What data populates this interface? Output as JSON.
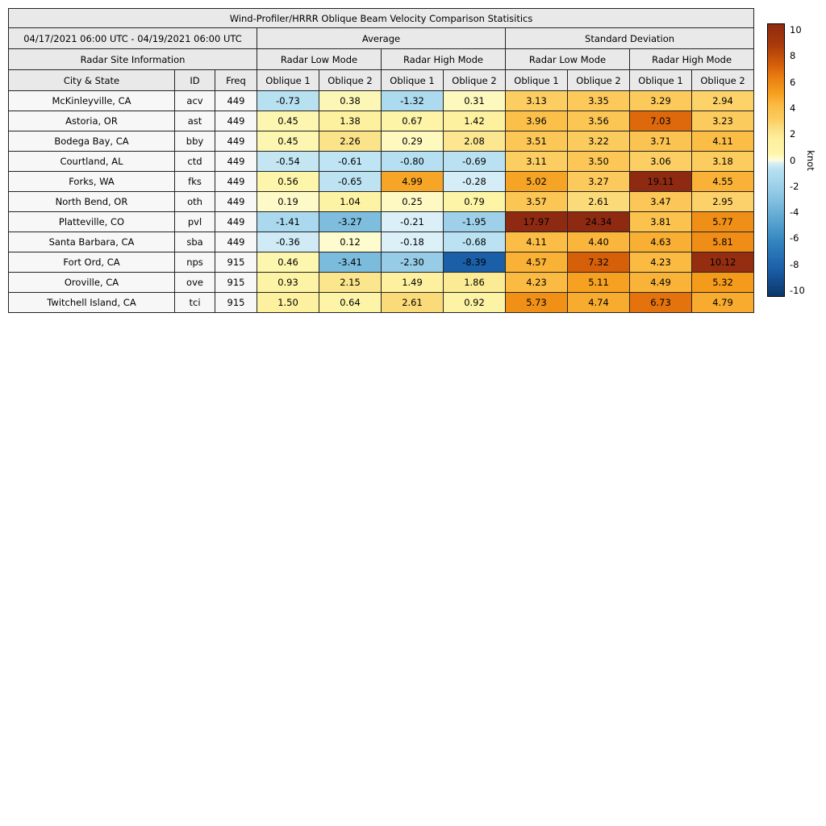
{
  "chart_data": {
    "type": "heatmap-table",
    "title": "Wind-Profiler/HRRR Oblique Beam Velocity Comparison Statisitics",
    "date_range": "04/17/2021 06:00 UTC - 04/19/2021 06:00 UTC",
    "groups": [
      "Average",
      "Standard Deviation"
    ],
    "site_info_label": "Radar Site Information",
    "mode_headers": [
      "Radar Low Mode",
      "Radar High Mode",
      "Radar Low Mode",
      "Radar High Mode"
    ],
    "column_headers": [
      "City & State",
      "ID",
      "Freq",
      "Oblique 1",
      "Oblique 2",
      "Oblique 1",
      "Oblique 2",
      "Oblique 1",
      "Oblique 2",
      "Oblique 1",
      "Oblique 2"
    ],
    "rows": [
      {
        "city": "McKinleyville, CA",
        "id": "acv",
        "freq": "449",
        "values": [
          -0.73,
          0.38,
          -1.32,
          0.31,
          3.13,
          3.35,
          3.29,
          2.94
        ]
      },
      {
        "city": "Astoria, OR",
        "id": "ast",
        "freq": "449",
        "values": [
          0.45,
          1.38,
          0.67,
          1.42,
          3.96,
          3.56,
          7.03,
          3.23
        ]
      },
      {
        "city": "Bodega Bay, CA",
        "id": "bby",
        "freq": "449",
        "values": [
          0.45,
          2.26,
          0.29,
          2.08,
          3.51,
          3.22,
          3.71,
          4.11
        ]
      },
      {
        "city": "Courtland, AL",
        "id": "ctd",
        "freq": "449",
        "values": [
          -0.54,
          -0.61,
          -0.8,
          -0.69,
          3.11,
          3.5,
          3.06,
          3.18
        ]
      },
      {
        "city": "Forks, WA",
        "id": "fks",
        "freq": "449",
        "values": [
          0.56,
          -0.65,
          4.99,
          -0.28,
          5.02,
          3.27,
          19.11,
          4.55
        ]
      },
      {
        "city": "North Bend, OR",
        "id": "oth",
        "freq": "449",
        "values": [
          0.19,
          1.04,
          0.25,
          0.79,
          3.57,
          2.61,
          3.47,
          2.95
        ]
      },
      {
        "city": "Platteville, CO",
        "id": "pvl",
        "freq": "449",
        "values": [
          -1.41,
          -3.27,
          -0.21,
          -1.95,
          17.97,
          24.34,
          3.81,
          5.77
        ]
      },
      {
        "city": "Santa Barbara, CA",
        "id": "sba",
        "freq": "449",
        "values": [
          -0.36,
          0.12,
          -0.18,
          -0.68,
          4.11,
          4.4,
          4.63,
          5.81
        ]
      },
      {
        "city": "Fort Ord, CA",
        "id": "nps",
        "freq": "915",
        "values": [
          0.46,
          -3.41,
          -2.3,
          -8.39,
          4.57,
          7.32,
          4.23,
          10.12
        ]
      },
      {
        "city": "Oroville, CA",
        "id": "ove",
        "freq": "915",
        "values": [
          0.93,
          2.15,
          1.49,
          1.86,
          4.23,
          5.11,
          4.49,
          5.32
        ]
      },
      {
        "city": "Twitchell Island, CA",
        "id": "tci",
        "freq": "915",
        "values": [
          1.5,
          0.64,
          2.61,
          0.92,
          5.73,
          4.74,
          6.73,
          4.79
        ]
      }
    ],
    "colorbar": {
      "label": "knot",
      "ticks": [
        10,
        8,
        6,
        4,
        2,
        0,
        -2,
        -4,
        -6,
        -8,
        -10
      ],
      "vmin": -10.5,
      "vmax": 10.5,
      "positive_stops": [
        [
          0.0,
          "#fefdda"
        ],
        [
          0.05,
          "#fdf5a9"
        ],
        [
          0.15,
          "#fdf09e"
        ],
        [
          0.22,
          "#fbe288"
        ],
        [
          0.3,
          "#fccc5f"
        ],
        [
          0.4,
          "#fbbc44"
        ],
        [
          0.5,
          "#f59d1c"
        ],
        [
          0.62,
          "#e97a10"
        ],
        [
          0.7,
          "#d55f09"
        ],
        [
          0.85,
          "#a83a0a"
        ],
        [
          1.0,
          "#8f2a12"
        ]
      ],
      "negative_stops": [
        [
          0.0,
          "#e8f5fa"
        ],
        [
          0.07,
          "#b7e0f1"
        ],
        [
          0.13,
          "#abd9ee"
        ],
        [
          0.22,
          "#96cce6"
        ],
        [
          0.32,
          "#7cbcdd"
        ],
        [
          0.45,
          "#58a3cf"
        ],
        [
          0.6,
          "#3384c0"
        ],
        [
          0.8,
          "#1b5fa8"
        ],
        [
          1.0,
          "#0b3669"
        ]
      ]
    }
  },
  "colors": {
    "header_bg": "#e9e9e9",
    "row_label_bg": "#f7f7f7",
    "border": "#222222",
    "text": "#000000"
  }
}
